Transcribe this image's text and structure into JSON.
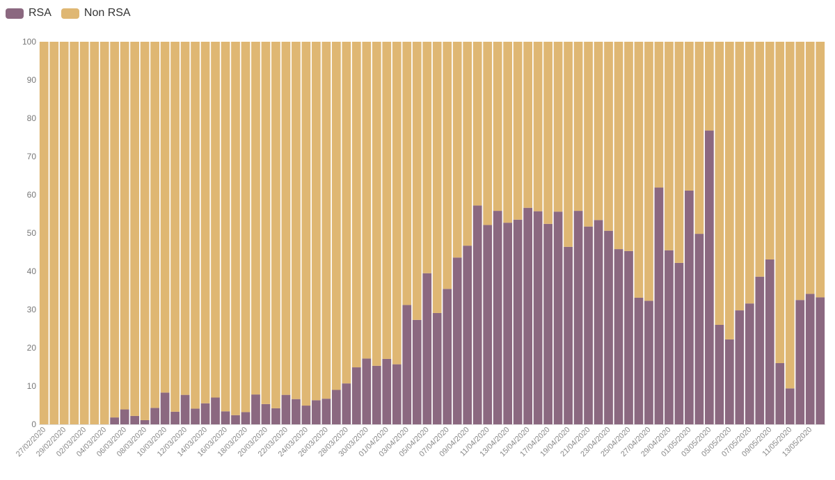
{
  "legend": {
    "rsa_label": "RSA",
    "non_rsa_label": "Non RSA"
  },
  "chart_data": {
    "type": "bar",
    "stacked": true,
    "title": "",
    "xlabel": "",
    "ylabel": "",
    "ylim": [
      0,
      100
    ],
    "yticks": [
      0,
      10,
      20,
      30,
      40,
      50,
      60,
      70,
      80,
      90,
      100
    ],
    "legend_position": "top-left",
    "colors": {
      "RSA": "#8b6880",
      "Non RSA": "#dfb773"
    },
    "categories": [
      "27/02/2020",
      "28/02/2020",
      "29/02/2020",
      "01/03/2020",
      "02/03/2020",
      "03/03/2020",
      "04/03/2020",
      "05/03/2020",
      "06/03/2020",
      "07/03/2020",
      "08/03/2020",
      "09/03/2020",
      "10/03/2020",
      "11/03/2020",
      "12/03/2020",
      "13/03/2020",
      "14/03/2020",
      "15/03/2020",
      "16/03/2020",
      "17/03/2020",
      "18/03/2020",
      "19/03/2020",
      "20/03/2020",
      "21/03/2020",
      "22/03/2020",
      "23/03/2020",
      "24/03/2020",
      "25/03/2020",
      "26/03/2020",
      "27/03/2020",
      "28/03/2020",
      "29/03/2020",
      "30/03/2020",
      "31/03/2020",
      "01/04/2020",
      "02/04/2020",
      "03/04/2020",
      "04/04/2020",
      "05/04/2020",
      "06/04/2020",
      "07/04/2020",
      "08/04/2020",
      "09/04/2020",
      "10/04/2020",
      "11/04/2020",
      "12/04/2020",
      "13/04/2020",
      "14/04/2020",
      "15/04/2020",
      "16/04/2020",
      "17/04/2020",
      "18/04/2020",
      "19/04/2020",
      "20/04/2020",
      "21/04/2020",
      "22/04/2020",
      "23/04/2020",
      "24/04/2020",
      "25/04/2020",
      "26/04/2020",
      "27/04/2020",
      "28/04/2020",
      "29/04/2020",
      "30/04/2020",
      "01/05/2020",
      "02/05/2020",
      "03/05/2020",
      "04/05/2020",
      "05/05/2020",
      "06/05/2020",
      "07/05/2020",
      "08/05/2020",
      "09/05/2020",
      "10/05/2020",
      "11/05/2020",
      "12/05/2020",
      "13/05/2020",
      "14/05/2020"
    ],
    "xtick_labels_shown": [
      "27/02/2020",
      "29/02/2020",
      "02/03/2020",
      "04/03/2020",
      "06/03/2020",
      "08/03/2020",
      "10/03/2020",
      "12/03/2020",
      "14/03/2020",
      "16/03/2020",
      "18/03/2020",
      "20/03/2020",
      "22/03/2020",
      "24/03/2020",
      "26/03/2020",
      "28/03/2020",
      "30/03/2020",
      "01/04/2020",
      "03/04/2020",
      "05/04/2020",
      "07/04/2020",
      "09/04/2020",
      "11/04/2020",
      "13/04/2020",
      "15/04/2020",
      "17/04/2020",
      "19/04/2020",
      "21/04/2020",
      "23/04/2020",
      "25/04/2020",
      "27/04/2020",
      "29/04/2020",
      "01/05/2020",
      "03/05/2020",
      "05/05/2020",
      "07/05/2020",
      "09/05/2020",
      "11/05/2020",
      "13/05/2020"
    ],
    "series": [
      {
        "name": "RSA",
        "values": [
          0,
          0,
          0,
          0,
          0,
          0,
          0,
          1.8,
          3.9,
          2.2,
          1.1,
          4.3,
          8.3,
          3.3,
          7.7,
          4.1,
          5.5,
          7.0,
          3.4,
          2.4,
          3.2,
          7.8,
          5.3,
          4.2,
          7.7,
          6.6,
          4.9,
          6.3,
          6.7,
          9.0,
          10.7,
          14.9,
          17.2,
          15.3,
          17.1,
          15.7,
          31.2,
          27.3,
          39.5,
          29.1,
          35.4,
          43.6,
          46.7,
          57.2,
          52.1,
          55.8,
          52.7,
          53.5,
          56.6,
          55.7,
          52.4,
          55.6,
          46.4,
          55.8,
          51.7,
          53.4,
          50.6,
          45.8,
          45.3,
          33.1,
          32.3,
          61.9,
          45.5,
          42.2,
          61.1,
          49.8,
          76.8,
          26.0,
          22.2,
          29.8,
          31.6,
          38.6,
          43.1,
          16.0,
          9.4,
          32.5,
          34.1,
          33.2
        ]
      },
      {
        "name": "Non RSA",
        "values": [
          100,
          100,
          100,
          100,
          100,
          100,
          100,
          98.2,
          96.1,
          97.8,
          98.9,
          95.7,
          91.7,
          96.7,
          92.3,
          95.9,
          94.5,
          93.0,
          96.6,
          97.6,
          96.8,
          92.2,
          94.7,
          95.8,
          92.3,
          93.4,
          95.1,
          93.7,
          93.3,
          91.0,
          89.3,
          85.1,
          82.8,
          84.7,
          82.9,
          84.3,
          68.8,
          72.7,
          60.5,
          70.9,
          64.6,
          56.4,
          53.3,
          42.8,
          47.9,
          44.2,
          47.3,
          46.5,
          43.4,
          44.3,
          47.6,
          44.4,
          53.6,
          44.2,
          48.3,
          46.6,
          49.4,
          54.2,
          54.7,
          66.9,
          67.7,
          38.1,
          54.5,
          57.8,
          38.9,
          50.2,
          23.2,
          74.0,
          77.8,
          70.2,
          68.4,
          61.4,
          56.9,
          84.0,
          90.6,
          67.5,
          65.9,
          66.8
        ]
      }
    ]
  }
}
